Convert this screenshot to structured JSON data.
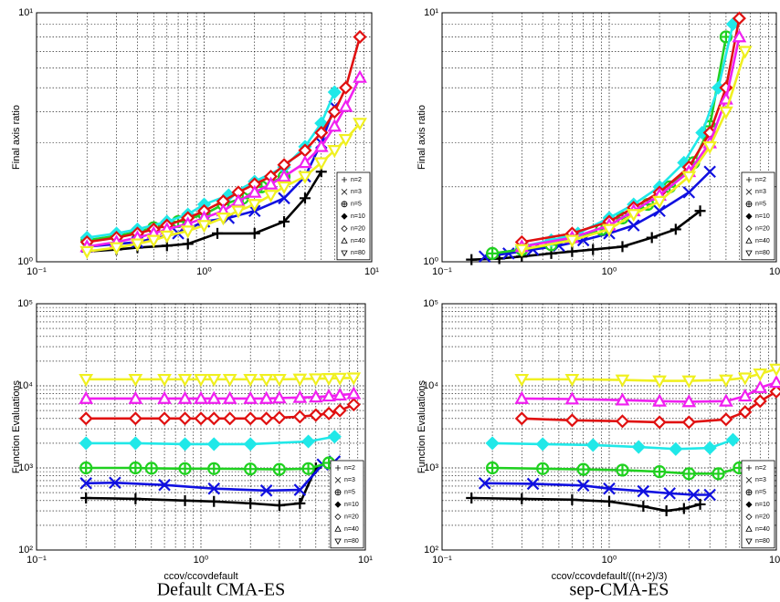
{
  "chart_data": [
    {
      "type": "line",
      "ylabel": "Final axis ratio",
      "xscale": "log",
      "yscale": "log",
      "grid": true,
      "xlim": [
        0.1,
        10
      ],
      "ylim": [
        1,
        10
      ],
      "xticks": [
        {
          "value": 0.1,
          "label": "10⁻¹"
        },
        {
          "value": 1,
          "label": "10⁰"
        },
        {
          "value": 10,
          "label": "10¹"
        }
      ],
      "yticks": [
        {
          "value": 1,
          "label": "10⁰"
        },
        {
          "value": 10,
          "label": "10¹"
        }
      ],
      "xminorticks": [
        0.2,
        0.3,
        0.4,
        0.5,
        0.6,
        0.7,
        0.8,
        0.9,
        2,
        3,
        4,
        5,
        6,
        7,
        8,
        9
      ],
      "yminorticks": [
        2,
        3,
        4,
        5,
        6,
        7,
        8,
        9
      ],
      "series": [
        {
          "name": "n=2",
          "color": "#000000",
          "marker": "plus",
          "x": [
            0.2,
            0.3,
            0.4,
            0.6,
            0.8,
            1.2,
            2,
            3,
            4,
            5
          ],
          "values": [
            1.1,
            1.12,
            1.14,
            1.16,
            1.18,
            1.3,
            1.3,
            1.45,
            1.8,
            2.3
          ]
        },
        {
          "name": "n=3",
          "color": "#1010e0",
          "marker": "x",
          "x": [
            0.2,
            0.4,
            0.7,
            1,
            1.4,
            2,
            3,
            4,
            5,
            6
          ],
          "values": [
            1.15,
            1.2,
            1.3,
            1.45,
            1.5,
            1.6,
            1.8,
            2.2,
            3,
            4.2
          ]
        },
        {
          "name": "n=5",
          "color": "#20d020",
          "marker": "circle-plus",
          "x": [
            0.2,
            0.3,
            0.4,
            0.5,
            0.7,
            1,
            1.3,
            1.7,
            2.2,
            3
          ],
          "values": [
            1.22,
            1.27,
            1.32,
            1.37,
            1.45,
            1.55,
            1.7,
            1.8,
            2,
            2.2
          ]
        },
        {
          "name": "n=10",
          "color": "#20e8e8",
          "marker": "diamond-filled",
          "x": [
            0.2,
            0.3,
            0.4,
            0.6,
            0.8,
            1,
            1.4,
            2,
            3,
            4,
            5,
            6
          ],
          "values": [
            1.25,
            1.3,
            1.35,
            1.45,
            1.55,
            1.7,
            1.85,
            2.1,
            2.4,
            2.9,
            3.6,
            4.8
          ]
        },
        {
          "name": "n=20",
          "color": "#e01010",
          "marker": "diamond",
          "x": [
            0.2,
            0.3,
            0.4,
            0.5,
            0.6,
            0.8,
            1,
            1.3,
            1.6,
            2,
            2.5,
            3,
            4,
            5,
            6,
            7,
            8.5
          ],
          "values": [
            1.2,
            1.25,
            1.3,
            1.35,
            1.4,
            1.5,
            1.6,
            1.75,
            1.9,
            2.05,
            2.2,
            2.45,
            2.8,
            3.3,
            4,
            5,
            8
          ]
        },
        {
          "name": "n=40",
          "color": "#f020f0",
          "marker": "triangle",
          "x": [
            0.2,
            0.3,
            0.4,
            0.5,
            0.6,
            0.8,
            1,
            1.3,
            1.6,
            2,
            2.5,
            3,
            4,
            5,
            6,
            7,
            8.5
          ],
          "values": [
            1.15,
            1.2,
            1.25,
            1.3,
            1.35,
            1.42,
            1.5,
            1.6,
            1.75,
            1.9,
            2.05,
            2.2,
            2.5,
            2.9,
            3.5,
            4.2,
            5.5
          ]
        },
        {
          "name": "n=80",
          "color": "#f0f020",
          "marker": "triangle-down",
          "x": [
            0.2,
            0.3,
            0.4,
            0.5,
            0.6,
            0.8,
            1,
            1.3,
            1.6,
            2,
            2.5,
            3,
            4,
            5,
            6,
            7,
            8.5
          ],
          "values": [
            1.1,
            1.14,
            1.18,
            1.22,
            1.27,
            1.33,
            1.4,
            1.5,
            1.6,
            1.7,
            1.85,
            2,
            2.2,
            2.5,
            2.8,
            3.1,
            3.6
          ]
        }
      ]
    },
    {
      "type": "line",
      "ylabel": "Final axis ratio",
      "xscale": "log",
      "yscale": "log",
      "grid": true,
      "xlim": [
        0.1,
        10
      ],
      "ylim": [
        1,
        10
      ],
      "xticks": [
        {
          "value": 0.1,
          "label": "10⁻¹"
        },
        {
          "value": 1,
          "label": "10⁰"
        },
        {
          "value": 10,
          "label": "10¹"
        }
      ],
      "yticks": [
        {
          "value": 1,
          "label": "10⁰"
        },
        {
          "value": 10,
          "label": "10¹"
        }
      ],
      "xminorticks": [
        0.2,
        0.3,
        0.4,
        0.5,
        0.6,
        0.7,
        0.8,
        0.9,
        2,
        3,
        4,
        5,
        6,
        7,
        8,
        9
      ],
      "yminorticks": [
        2,
        3,
        4,
        5,
        6,
        7,
        8,
        9
      ],
      "series": [
        {
          "name": "n=2",
          "color": "#000000",
          "marker": "plus",
          "x": [
            0.15,
            0.22,
            0.3,
            0.45,
            0.6,
            0.8,
            1.2,
            1.8,
            2.5,
            3.5
          ],
          "values": [
            1.02,
            1.03,
            1.05,
            1.08,
            1.1,
            1.12,
            1.15,
            1.25,
            1.35,
            1.6
          ]
        },
        {
          "name": "n=3",
          "color": "#1010e0",
          "marker": "x",
          "x": [
            0.18,
            0.25,
            0.35,
            0.5,
            0.7,
            1,
            1.4,
            2,
            3,
            4
          ],
          "values": [
            1.05,
            1.08,
            1.12,
            1.16,
            1.22,
            1.3,
            1.4,
            1.6,
            1.9,
            2.3
          ]
        },
        {
          "name": "n=5",
          "color": "#20d020",
          "marker": "circle-plus",
          "x": [
            0.2,
            0.3,
            0.45,
            0.6,
            0.9,
            1.2,
            1.7,
            2.3,
            3.2,
            4,
            5
          ],
          "values": [
            1.08,
            1.12,
            1.17,
            1.25,
            1.35,
            1.5,
            1.7,
            2,
            2.5,
            3.5,
            8
          ]
        },
        {
          "name": "n=10",
          "color": "#20e8e8",
          "marker": "diamond-filled",
          "x": [
            0.3,
            0.45,
            0.65,
            1,
            1.4,
            2,
            2.8,
            3.6,
            4.5,
            5.5
          ],
          "values": [
            1.15,
            1.22,
            1.3,
            1.5,
            1.7,
            2,
            2.5,
            3.3,
            5,
            9
          ]
        },
        {
          "name": "n=20",
          "color": "#e01010",
          "marker": "diamond",
          "x": [
            0.3,
            0.6,
            1,
            1.4,
            2,
            3,
            4,
            5,
            6
          ],
          "values": [
            1.2,
            1.3,
            1.45,
            1.65,
            1.9,
            2.4,
            3.3,
            5,
            9.5
          ]
        },
        {
          "name": "n=40",
          "color": "#f020f0",
          "marker": "triangle",
          "x": [
            0.3,
            0.6,
            1,
            1.4,
            2,
            3,
            4,
            5,
            6
          ],
          "values": [
            1.15,
            1.25,
            1.4,
            1.6,
            1.85,
            2.3,
            3,
            4.5,
            8
          ]
        },
        {
          "name": "n=80",
          "color": "#f0f020",
          "marker": "triangle-down",
          "x": [
            0.3,
            0.6,
            1,
            1.4,
            2,
            3,
            4,
            5,
            6.5
          ],
          "values": [
            1.12,
            1.22,
            1.35,
            1.55,
            1.75,
            2.2,
            2.9,
            4,
            7
          ]
        }
      ]
    },
    {
      "type": "line",
      "ylabel": "Function Evaluations",
      "xlabel": "ccov/ccovdefault",
      "xscale": "log",
      "yscale": "log",
      "grid": true,
      "xlim": [
        0.1,
        10
      ],
      "ylim": [
        100,
        100000
      ],
      "xticks": [
        {
          "value": 0.1,
          "label": "10⁻¹"
        },
        {
          "value": 1,
          "label": "10⁰"
        },
        {
          "value": 10,
          "label": "10¹"
        }
      ],
      "yticks": [
        {
          "value": 100,
          "label": "10²"
        },
        {
          "value": 1000,
          "label": "10³"
        },
        {
          "value": 10000,
          "label": "10⁴"
        },
        {
          "value": 100000,
          "label": "10⁵"
        }
      ],
      "xminorticks": [
        0.2,
        0.3,
        0.4,
        0.5,
        0.6,
        0.7,
        0.8,
        0.9,
        2,
        3,
        4,
        5,
        6,
        7,
        8,
        9
      ],
      "yminorticks": [
        200,
        300,
        400,
        500,
        600,
        700,
        800,
        900,
        2000,
        3000,
        4000,
        5000,
        6000,
        7000,
        8000,
        9000,
        20000,
        30000,
        40000,
        50000,
        60000,
        70000,
        80000,
        90000
      ],
      "series": [
        {
          "name": "n=2",
          "color": "#000000",
          "marker": "plus",
          "x": [
            0.2,
            0.4,
            0.8,
            1.2,
            2,
            3,
            4,
            5
          ],
          "values": [
            430,
            420,
            400,
            390,
            370,
            350,
            370,
            1000
          ]
        },
        {
          "name": "n=3",
          "color": "#1010e0",
          "marker": "x",
          "x": [
            0.2,
            0.3,
            0.6,
            1.2,
            2.5,
            4,
            5.5,
            6.5
          ],
          "values": [
            650,
            660,
            620,
            560,
            530,
            540,
            1100,
            1200
          ]
        },
        {
          "name": "n=5",
          "color": "#20d020",
          "marker": "circle-plus",
          "x": [
            0.2,
            0.4,
            0.5,
            0.8,
            1.2,
            2,
            3,
            4.5,
            6
          ],
          "values": [
            1000,
            1000,
            990,
            980,
            980,
            970,
            960,
            980,
            1150
          ]
        },
        {
          "name": "n=10",
          "color": "#20e8e8",
          "marker": "diamond-filled",
          "x": [
            0.2,
            0.4,
            0.8,
            1.2,
            2,
            4.5,
            6.5
          ],
          "values": [
            2000,
            2000,
            1950,
            1950,
            1950,
            2100,
            2400
          ]
        },
        {
          "name": "n=20",
          "color": "#e01010",
          "marker": "diamond",
          "x": [
            0.2,
            0.4,
            0.6,
            0.8,
            1,
            1.2,
            1.5,
            2,
            2.5,
            3,
            4,
            5,
            6,
            7,
            8.5
          ],
          "values": [
            4000,
            4000,
            4000,
            4000,
            4000,
            4000,
            4000,
            4000,
            4000,
            4100,
            4200,
            4400,
            4600,
            5000,
            5900
          ]
        },
        {
          "name": "n=40",
          "color": "#f020f0",
          "marker": "triangle",
          "x": [
            0.2,
            0.4,
            0.6,
            0.8,
            1,
            1.2,
            1.5,
            2,
            2.5,
            3,
            4,
            5,
            6,
            7,
            8.5
          ],
          "values": [
            7000,
            7000,
            7000,
            7000,
            7000,
            7000,
            7000,
            7000,
            7000,
            7100,
            7200,
            7300,
            7500,
            7700,
            8000
          ]
        },
        {
          "name": "n=80",
          "color": "#f0f020",
          "marker": "triangle-down",
          "x": [
            0.2,
            0.4,
            0.6,
            0.8,
            1,
            1.2,
            1.5,
            2,
            2.5,
            3,
            4,
            5,
            6,
            7,
            8.5
          ],
          "values": [
            12000,
            12000,
            12000,
            12000,
            12000,
            12000,
            12000,
            12000,
            12000,
            12000,
            12100,
            12200,
            12300,
            12400,
            12500
          ]
        }
      ]
    },
    {
      "type": "line",
      "ylabel": "Function Evaluations",
      "xlabel": "ccov/ccovdefault/((n+2)/3)",
      "xscale": "log",
      "yscale": "log",
      "grid": true,
      "xlim": [
        0.1,
        10
      ],
      "ylim": [
        100,
        100000
      ],
      "xticks": [
        {
          "value": 0.1,
          "label": "10⁻¹"
        },
        {
          "value": 1,
          "label": "10⁰"
        },
        {
          "value": 10,
          "label": "10¹"
        }
      ],
      "yticks": [
        {
          "value": 100,
          "label": "10²"
        },
        {
          "value": 1000,
          "label": "10³"
        },
        {
          "value": 10000,
          "label": "10⁴"
        },
        {
          "value": 100000,
          "label": "10⁵"
        }
      ],
      "xminorticks": [
        0.2,
        0.3,
        0.4,
        0.5,
        0.6,
        0.7,
        0.8,
        0.9,
        2,
        3,
        4,
        5,
        6,
        7,
        8,
        9
      ],
      "yminorticks": [
        200,
        300,
        400,
        500,
        600,
        700,
        800,
        900,
        2000,
        3000,
        4000,
        5000,
        6000,
        7000,
        8000,
        9000,
        20000,
        30000,
        40000,
        50000,
        60000,
        70000,
        80000,
        90000
      ],
      "series": [
        {
          "name": "n=2",
          "color": "#000000",
          "marker": "plus",
          "x": [
            0.15,
            0.3,
            0.6,
            1,
            1.6,
            2.2,
            2.8,
            3.5
          ],
          "values": [
            430,
            420,
            410,
            390,
            340,
            300,
            320,
            360
          ]
        },
        {
          "name": "n=3",
          "color": "#1010e0",
          "marker": "x",
          "x": [
            0.18,
            0.35,
            0.7,
            1,
            1.6,
            2.3,
            3.2,
            4
          ],
          "values": [
            650,
            640,
            610,
            560,
            520,
            490,
            470,
            470
          ]
        },
        {
          "name": "n=5",
          "color": "#20d020",
          "marker": "circle-plus",
          "x": [
            0.2,
            0.4,
            0.7,
            1.2,
            2,
            3,
            4.5,
            6
          ],
          "values": [
            1000,
            980,
            960,
            940,
            900,
            850,
            850,
            1000
          ]
        },
        {
          "name": "n=10",
          "color": "#20e8e8",
          "marker": "diamond-filled",
          "x": [
            0.2,
            0.4,
            0.8,
            1.5,
            2.5,
            4,
            5.5
          ],
          "values": [
            2000,
            1950,
            1900,
            1800,
            1700,
            1750,
            2200
          ]
        },
        {
          "name": "n=20",
          "color": "#e01010",
          "marker": "diamond",
          "x": [
            0.3,
            0.6,
            1.2,
            2,
            3,
            5,
            6.5,
            8,
            10
          ],
          "values": [
            4000,
            3800,
            3700,
            3600,
            3600,
            3900,
            4800,
            6500,
            8500
          ]
        },
        {
          "name": "n=40",
          "color": "#f020f0",
          "marker": "triangle",
          "x": [
            0.3,
            0.6,
            1.2,
            2,
            3,
            5,
            6.5,
            8,
            10
          ],
          "values": [
            7000,
            6900,
            6700,
            6500,
            6400,
            6500,
            7500,
            9500,
            11000
          ]
        },
        {
          "name": "n=80",
          "color": "#f0f020",
          "marker": "triangle-down",
          "x": [
            0.3,
            0.6,
            1.2,
            2,
            3,
            5,
            6.5,
            8,
            10
          ],
          "values": [
            12000,
            12000,
            11800,
            11500,
            11500,
            11800,
            12500,
            14000,
            16000
          ]
        }
      ]
    }
  ],
  "captions": [
    "Default CMA-ES",
    "sep-CMA-ES"
  ]
}
